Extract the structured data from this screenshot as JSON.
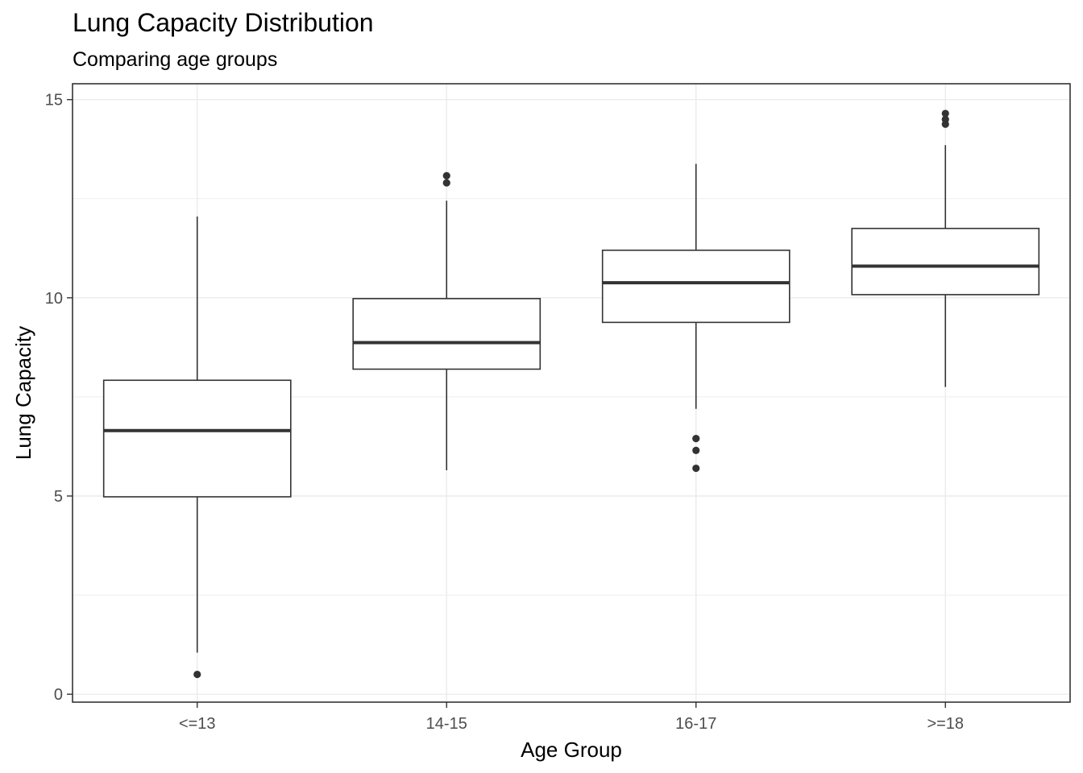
{
  "chart_data": {
    "type": "boxplot",
    "title": "Lung Capacity Distribution",
    "subtitle": "Comparing age groups",
    "xlabel": "Age Group",
    "ylabel": "Lung Capacity",
    "ylim": [
      -0.2,
      15.4
    ],
    "yticks": [
      0,
      5,
      10,
      15
    ],
    "grid": true,
    "categories": [
      "<=13",
      "14-15",
      "16-17",
      ">=18"
    ],
    "boxes": [
      {
        "category": "<=13",
        "lower_whisker": 1.05,
        "q1": 4.98,
        "median": 6.65,
        "q3": 7.92,
        "upper_whisker": 12.05,
        "outliers": [
          0.5
        ]
      },
      {
        "category": "14-15",
        "lower_whisker": 5.65,
        "q1": 8.2,
        "median": 8.87,
        "q3": 9.98,
        "upper_whisker": 12.45,
        "outliers": [
          12.9,
          13.08
        ]
      },
      {
        "category": "16-17",
        "lower_whisker": 7.2,
        "q1": 9.38,
        "median": 10.38,
        "q3": 11.2,
        "upper_whisker": 13.38,
        "outliers": [
          5.7,
          6.15,
          6.45
        ]
      },
      {
        "category": ">=18",
        "lower_whisker": 7.75,
        "q1": 10.08,
        "median": 10.8,
        "q3": 11.75,
        "upper_whisker": 13.85,
        "outliers": [
          14.38,
          14.5,
          14.65
        ]
      }
    ],
    "colors": {
      "box": "#333333",
      "grid": "#ebebeb",
      "panel_border": "#333333",
      "tick_text": "#4d4d4d"
    }
  }
}
